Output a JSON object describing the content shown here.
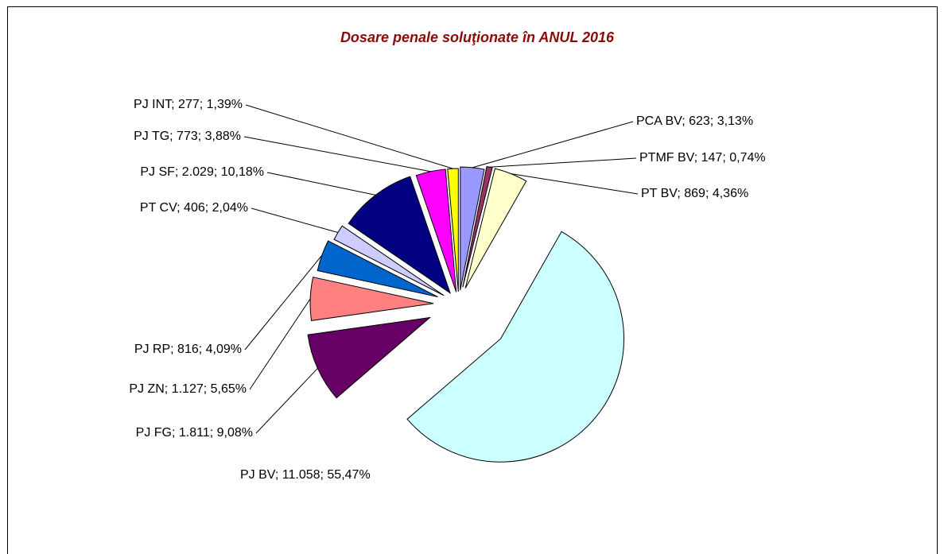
{
  "chart_data": {
    "type": "pie",
    "title": "Dosare penale soluţionate în ANUL 2016",
    "values": [
      623,
      147,
      869,
      11058,
      1811,
      1127,
      816,
      406,
      2029,
      773,
      277
    ],
    "value_labels": [
      "PCA BV; 623; 3,13%",
      "PTMF BV; 147; 0,74%",
      "PT BV; 869; 4,36%",
      "PJ BV; 11.058; 55,47%",
      "PJ FG; 1.811; 9,08%",
      "PJ ZN; 1.127; 5,65%",
      "PJ RP; 816; 4,09%",
      "PT CV; 406; 2,04%",
      "PJ SF; 2.029; 10,18%",
      "PJ TG; 773; 3,88%",
      "PJ INT; 277; 1,39%"
    ],
    "colors": [
      "#9999ff",
      "#993366",
      "#ffffcc",
      "#ccffff",
      "#660066",
      "#ff8080",
      "#0066cc",
      "#ccccff",
      "#000080",
      "#ff00ff",
      "#ffff00"
    ]
  }
}
